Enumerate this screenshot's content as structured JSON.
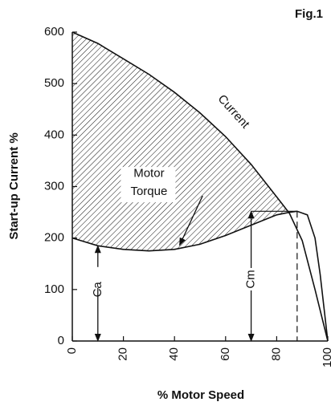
{
  "chart_data": {
    "type": "line",
    "fig_label": "Fig.1",
    "ylabel": "Start-up Current %",
    "xlabel": "% Motor Speed",
    "xlim": [
      0,
      100
    ],
    "ylim": [
      0,
      600
    ],
    "xticks": [
      0,
      20,
      40,
      60,
      80,
      100
    ],
    "yticks": [
      0,
      100,
      200,
      300,
      400,
      500,
      600
    ],
    "series": [
      {
        "name": "Current",
        "color": "#111111",
        "x": [
          0,
          10,
          20,
          30,
          40,
          50,
          60,
          70,
          80,
          85,
          90,
          95,
          100
        ],
        "values": [
          600,
          578,
          548,
          518,
          483,
          443,
          397,
          343,
          280,
          248,
          195,
          100,
          0
        ]
      },
      {
        "name": "Torque",
        "color": "#111111",
        "x": [
          0,
          10,
          20,
          30,
          40,
          50,
          60,
          70,
          80,
          85,
          88,
          92,
          95,
          97,
          100
        ],
        "values": [
          200,
          185,
          178,
          175,
          178,
          188,
          205,
          225,
          245,
          250,
          252,
          245,
          200,
          130,
          0
        ]
      }
    ],
    "annotations": [
      "Motor",
      "Ca",
      "Cm"
    ]
  }
}
